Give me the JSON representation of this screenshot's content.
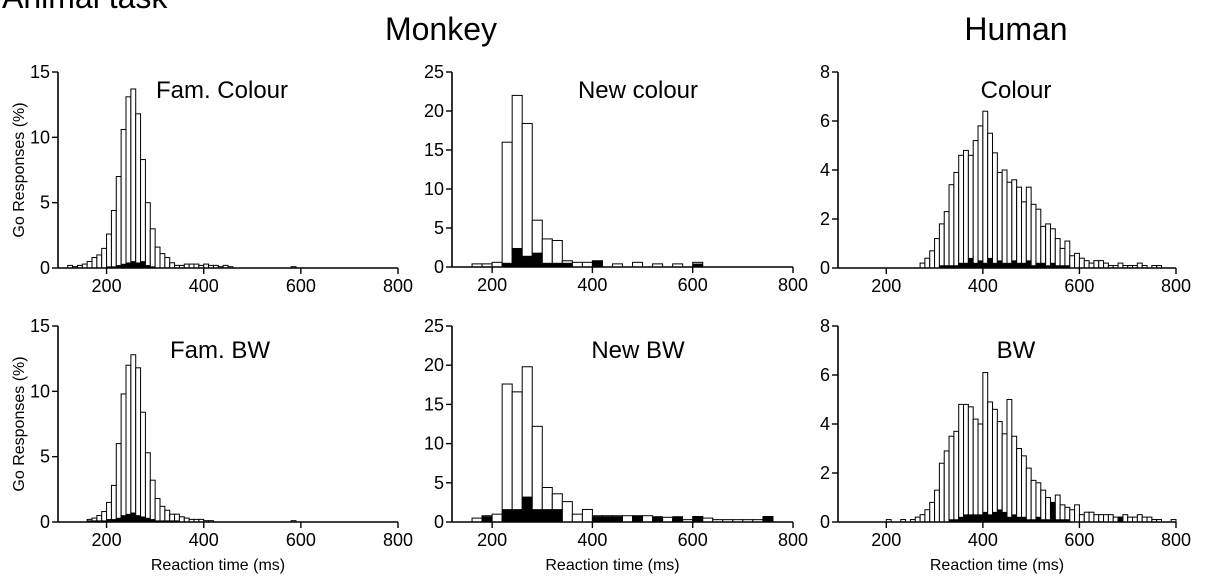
{
  "figure": {
    "partial_header": "Animal task",
    "group_titles": {
      "monkey": "Monkey",
      "human": "Human"
    },
    "ylabel": "Go Responses (%)",
    "xlabel": "Reaction time (ms)"
  },
  "chart_data": [
    {
      "type": "bar",
      "title": "Fam. Colour",
      "group": "Monkey",
      "xlabel": "",
      "ylabel": "Go Responses (%)",
      "xlim": [
        100,
        800
      ],
      "xticks": [
        200,
        400,
        600,
        800
      ],
      "ylim": [
        0,
        15
      ],
      "yticks": [
        0,
        5,
        10,
        15
      ],
      "bin_width": 10,
      "bin_starts": [
        120,
        130,
        140,
        150,
        160,
        170,
        180,
        190,
        200,
        210,
        220,
        230,
        240,
        250,
        260,
        270,
        280,
        290,
        300,
        310,
        320,
        330,
        340,
        350,
        360,
        370,
        380,
        390,
        400,
        410,
        420,
        430,
        440,
        450,
        580
      ],
      "series": [
        {
          "name": "",
          "values": [
            0.2,
            0.1,
            0.2,
            0.3,
            0.5,
            0.8,
            1.0,
            1.5,
            2.6,
            4.4,
            7.0,
            10.6,
            13.1,
            13.7,
            11.8,
            8.3,
            5.0,
            3.0,
            1.6,
            1.1,
            0.8,
            0.4,
            0.2,
            0.2,
            0.3,
            0.3,
            0.3,
            0.2,
            0.3,
            0.2,
            0.2,
            0.1,
            0.2,
            0.1,
            0.1
          ]
        },
        {
          "name": "",
          "values": [
            0,
            0,
            0,
            0,
            0,
            0,
            0,
            0,
            0.1,
            0.1,
            0.2,
            0.3,
            0.4,
            0.5,
            0.4,
            0.5,
            0.2,
            0.1,
            0,
            0,
            0,
            0,
            0,
            0,
            0,
            0,
            0,
            0,
            0,
            0,
            0,
            0,
            0,
            0,
            0
          ]
        }
      ]
    },
    {
      "type": "bar",
      "title": "New colour",
      "group": "Monkey",
      "xlabel": "",
      "ylabel": "",
      "xlim": [
        120,
        800
      ],
      "xticks": [
        200,
        400,
        600,
        800
      ],
      "ylim": [
        0,
        25
      ],
      "yticks": [
        0,
        5,
        10,
        15,
        20,
        25
      ],
      "bin_width": 20,
      "bin_starts": [
        160,
        180,
        200,
        220,
        240,
        260,
        280,
        300,
        320,
        340,
        360,
        380,
        400,
        420,
        440,
        460,
        480,
        500,
        520,
        540,
        560,
        580,
        600
      ],
      "series": [
        {
          "name": "",
          "values": [
            0.4,
            0.4,
            0.6,
            16.0,
            22.0,
            18.4,
            6.0,
            3.6,
            3.4,
            0.8,
            0.6,
            0.6,
            0.8,
            0,
            0.4,
            0,
            0.6,
            0,
            0.4,
            0,
            0.4,
            0,
            0.6
          ]
        },
        {
          "name": "",
          "values": [
            0,
            0,
            0,
            0.5,
            2.4,
            1.4,
            1.8,
            0.5,
            0.5,
            0.5,
            0,
            0,
            0.8,
            0,
            0,
            0,
            0,
            0,
            0,
            0,
            0,
            0,
            0.4
          ]
        }
      ]
    },
    {
      "type": "bar",
      "title": "Colour",
      "group": "Human",
      "xlabel": "",
      "ylabel": "",
      "xlim": [
        100,
        800
      ],
      "xticks": [
        200,
        400,
        600,
        800
      ],
      "ylim": [
        0,
        8
      ],
      "yticks": [
        0,
        2,
        4,
        6,
        8
      ],
      "bin_width": 10,
      "bin_starts": [
        270,
        280,
        290,
        300,
        310,
        320,
        330,
        340,
        350,
        360,
        370,
        380,
        390,
        400,
        410,
        420,
        430,
        440,
        450,
        460,
        470,
        480,
        490,
        500,
        510,
        520,
        530,
        540,
        550,
        560,
        570,
        580,
        590,
        600,
        610,
        620,
        630,
        640,
        650,
        660,
        670,
        680,
        690,
        700,
        710,
        720,
        730,
        740,
        750,
        760
      ],
      "series": [
        {
          "name": "",
          "values": [
            0.2,
            0.4,
            0.7,
            1.2,
            1.8,
            2.3,
            3.4,
            3.9,
            4.6,
            4.8,
            4.6,
            5.2,
            5.8,
            6.4,
            5.5,
            4.7,
            3.9,
            4.0,
            3.5,
            3.6,
            3.3,
            2.7,
            3.3,
            2.6,
            2.4,
            1.7,
            1.8,
            1.6,
            1.2,
            0.8,
            1.1,
            0.5,
            0.6,
            0.4,
            0.3,
            0.2,
            0.3,
            0.3,
            0.2,
            0.1,
            0.1,
            0.2,
            0.1,
            0.1,
            0.1,
            0.2,
            0.1,
            0,
            0.1,
            0.1
          ]
        },
        {
          "name": "",
          "values": [
            0,
            0,
            0,
            0,
            0.1,
            0.1,
            0.1,
            0.1,
            0.2,
            0.2,
            0.4,
            0.2,
            0.3,
            0.2,
            0.4,
            0.2,
            0.3,
            0.2,
            0.2,
            0.3,
            0.2,
            0.2,
            0.3,
            0.1,
            0.2,
            0.2,
            0.1,
            0.2,
            0.1,
            0.1,
            0.1,
            0,
            0,
            0,
            0,
            0,
            0,
            0,
            0,
            0,
            0,
            0,
            0,
            0,
            0,
            0,
            0,
            0,
            0,
            0
          ]
        }
      ]
    },
    {
      "type": "bar",
      "title": "Fam. BW",
      "group": "Monkey",
      "xlabel": "Reaction time (ms)",
      "ylabel": "Go Responses (%)",
      "xlim": [
        100,
        800
      ],
      "xticks": [
        200,
        400,
        600,
        800
      ],
      "ylim": [
        0,
        15
      ],
      "yticks": [
        0,
        5,
        10,
        15
      ],
      "bin_width": 10,
      "bin_starts": [
        160,
        170,
        180,
        190,
        200,
        210,
        220,
        230,
        240,
        250,
        260,
        270,
        280,
        290,
        300,
        310,
        320,
        330,
        340,
        350,
        360,
        370,
        380,
        390,
        400,
        410,
        580
      ],
      "series": [
        {
          "name": "",
          "values": [
            0.2,
            0.3,
            0.5,
            0.8,
            1.5,
            2.8,
            6.0,
            9.8,
            12.0,
            12.8,
            11.8,
            8.4,
            5.3,
            3.2,
            1.8,
            1.2,
            0.9,
            0.6,
            0.6,
            0.4,
            0.3,
            0.2,
            0.2,
            0.2,
            0.1,
            0.1,
            0.1
          ]
        },
        {
          "name": "",
          "values": [
            0.1,
            0.1,
            0.1,
            0.1,
            0.2,
            0.2,
            0.3,
            0.5,
            0.6,
            0.7,
            0.5,
            0.4,
            0.3,
            0.2,
            0.1,
            0.1,
            0.1,
            0.1,
            0.1,
            0,
            0,
            0,
            0,
            0,
            0,
            0,
            0
          ]
        }
      ]
    },
    {
      "type": "bar",
      "title": "New BW",
      "group": "Monkey",
      "xlabel": "Reaction time (ms)",
      "ylabel": "",
      "xlim": [
        120,
        800
      ],
      "xticks": [
        200,
        400,
        600,
        800
      ],
      "ylim": [
        0,
        25
      ],
      "yticks": [
        0,
        5,
        10,
        15,
        20,
        25
      ],
      "bin_width": 20,
      "bin_starts": [
        160,
        180,
        200,
        220,
        240,
        260,
        280,
        300,
        320,
        340,
        360,
        380,
        400,
        420,
        440,
        460,
        480,
        500,
        520,
        540,
        560,
        580,
        600,
        620,
        640,
        660,
        680,
        700,
        720,
        740
      ],
      "series": [
        {
          "name": "",
          "values": [
            0.5,
            0.8,
            1.0,
            17.6,
            16.6,
            19.8,
            12.2,
            4.4,
            3.6,
            2.6,
            1.0,
            1.6,
            0.8,
            0.8,
            0.8,
            0.8,
            0.8,
            0.8,
            0.4,
            0.6,
            0.3,
            0.3,
            0.7,
            0.5,
            0.3,
            0.3,
            0.3,
            0.3,
            0.3,
            0.7
          ]
        },
        {
          "name": "",
          "values": [
            0,
            0.7,
            0,
            1.6,
            1.6,
            3.2,
            1.6,
            1.6,
            1.6,
            0,
            0,
            0,
            0.7,
            0.7,
            0.7,
            0,
            0.8,
            0,
            0.7,
            0,
            0.7,
            0,
            0.7,
            0,
            0,
            0,
            0,
            0,
            0,
            0.7
          ]
        }
      ]
    },
    {
      "type": "bar",
      "title": "BW",
      "group": "Human",
      "xlabel": "Reaction time (ms)",
      "ylabel": "",
      "xlim": [
        100,
        800
      ],
      "xticks": [
        200,
        400,
        600,
        800
      ],
      "ylim": [
        0,
        8
      ],
      "yticks": [
        0,
        2,
        4,
        6,
        8
      ],
      "bin_width": 10,
      "bin_starts": [
        200,
        230,
        250,
        260,
        270,
        280,
        290,
        300,
        310,
        320,
        330,
        340,
        350,
        360,
        370,
        380,
        390,
        400,
        410,
        420,
        430,
        440,
        450,
        460,
        470,
        480,
        490,
        500,
        510,
        520,
        530,
        540,
        550,
        560,
        570,
        580,
        590,
        600,
        610,
        620,
        630,
        640,
        650,
        660,
        670,
        680,
        690,
        700,
        710,
        720,
        730,
        740,
        750,
        760,
        790
      ],
      "series": [
        {
          "name": "",
          "values": [
            0.1,
            0.1,
            0.1,
            0.2,
            0.3,
            0.5,
            0.8,
            1.3,
            2.4,
            2.9,
            3.5,
            3.7,
            4.8,
            4.8,
            4.7,
            4.2,
            4.0,
            6.1,
            4.9,
            4.6,
            4.1,
            3.6,
            5.0,
            3.5,
            3.0,
            2.7,
            2.2,
            1.7,
            1.6,
            1.3,
            1.0,
            0.8,
            1.1,
            0.7,
            0.6,
            0.5,
            0.7,
            0.3,
            0.4,
            0.4,
            0.3,
            0.3,
            0.3,
            0.3,
            0.2,
            0.2,
            0.3,
            0.2,
            0.2,
            0.3,
            0.2,
            0.2,
            0.1,
            0.1,
            0.1
          ]
        },
        {
          "name": "",
          "values": [
            0,
            0,
            0,
            0,
            0,
            0,
            0,
            0,
            0,
            0,
            0.1,
            0.1,
            0.2,
            0.3,
            0.3,
            0.3,
            0.3,
            0.4,
            0.3,
            0.4,
            0.5,
            0.4,
            0.2,
            0.3,
            0.2,
            0.2,
            0.1,
            0.1,
            0.2,
            0.1,
            0.1,
            0.8,
            0.1,
            0.1,
            0.1,
            0,
            0,
            0,
            0,
            0,
            0,
            0,
            0,
            0,
            0,
            0.2,
            0,
            0,
            0,
            0,
            0,
            0,
            0,
            0,
            0
          ]
        }
      ]
    }
  ]
}
